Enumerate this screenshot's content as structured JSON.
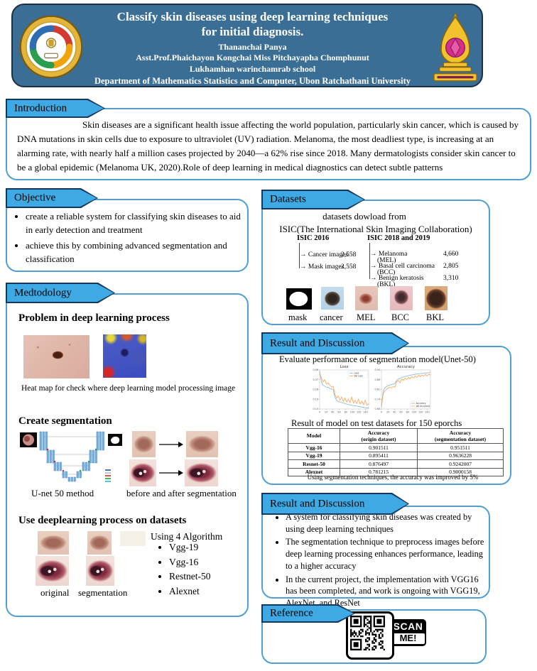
{
  "colors": {
    "header_bg": "#3a6e94",
    "banner_fill": "#3fa9e3",
    "banner_border": "#14375f",
    "panel_border": "#4f9fd4",
    "chart_train": "#7fb3d8",
    "chart_val": "#ffa04d"
  },
  "header": {
    "title_line1": "Classify skin diseases using deep learning techniques",
    "title_line2": "for initial diagnosis.",
    "author": "Thananchai Panya",
    "advisors": "Asst.Prof.Phaichayon Kongchai Miss Pitchayapha Chomphunut",
    "school": "Lukhamhan warinchamrab school",
    "department": "Department of Mathematics Statistics and Computer, Ubon Ratchathani University"
  },
  "introduction": {
    "title": "Introduction",
    "body": "Skin diseases are a significant health issue affecting the world population, particularly skin cancer, which is caused by DNA mutations in skin cells due to exposure to ultraviolet (UV) radiation. Melanoma, the most deadliest type, is increasing at an alarming rate, with nearly half a million cases projected by 2040—a 62% rise since 2018. Many dermatologists consider skin cancer to be a global epidemic (Melanoma UK, 2020).Role of deep learning in medical diagnostics can detect subtle patterns"
  },
  "objective": {
    "title": "Objective",
    "bullets": [
      "create a reliable system for classifying skin diseases to aid in early detection and treatment",
      "achieve this by combining advanced segmentation and classification"
    ]
  },
  "datasets": {
    "title": "Datasets",
    "subtitle_line1": "datasets dowload from",
    "subtitle_line2": "ISIC(The International Skin Imaging Collaboration)",
    "tree_arrow": "→",
    "isic2016": {
      "heading": "ISIC 2016",
      "items": [
        {
          "label": "Cancer images",
          "value": "2,558"
        },
        {
          "label": "Mask images",
          "value": "2,558"
        }
      ]
    },
    "isic2019": {
      "heading": "ISIC 2018 and 2019",
      "items": [
        {
          "label": "Melanoma",
          "abbr": "(MEL)",
          "value": "4,660"
        },
        {
          "label": "Basal cell carcinoma",
          "abbr": "(BCC)",
          "value": "2,805"
        },
        {
          "label": "Benign keratosis",
          "abbr": "(BKL)",
          "value": "3,310"
        }
      ]
    },
    "sample_labels": [
      "mask",
      "cancer",
      "MEL",
      "BCC",
      "BKL"
    ]
  },
  "methodology": {
    "title": "Medtodology",
    "problem_heading": "Problem in deep learning process",
    "heatmap_caption": "Heat map for check where deep learning model processing image",
    "segmentation_heading": "Create segmentation",
    "unet_caption": "U-net 50 method",
    "before_after_caption": "before and after segmentation",
    "deeplearning_heading": "Use deeplearning process on datasets",
    "original_label": "original",
    "segmentation_label": "segmentation",
    "algorithm_heading": "Using 4 Algorithm",
    "algorithms": [
      "Vgg-19",
      "Vgg-16",
      "Restnet-50",
      "Alexnet"
    ]
  },
  "results1": {
    "title": "Result and Discussion",
    "evaluate_heading": "Evaluate performance of segmentation model(Unet-50)",
    "table_heading": "Result of model on test datasets for 150 eporchs",
    "table": {
      "col_headers": [
        "Model",
        "Accuracy",
        "Accuracy"
      ],
      "col_subheaders": [
        "",
        "(origin dataset)",
        "(segmentation dataset)"
      ],
      "rows": [
        {
          "model": "Vgg-16",
          "origin": "0.901511",
          "seg": "0.951511"
        },
        {
          "model": "Vgg-19",
          "origin": "0.895411",
          "seg": "0.9636228"
        },
        {
          "model": "Resnet-50",
          "origin": "0.876497",
          "seg": "0.9242007"
        },
        {
          "model": "Alexnet",
          "origin": "0.781215",
          "seg": "0.9000158"
        }
      ]
    },
    "footnote": "Using segmentation techniques, the accuracy was improved by 5%"
  },
  "results2": {
    "title": "Result and Discussion",
    "bullets": [
      "A system for classifying skin diseases was created by using deep learning techniques",
      "The segmentation technique to preprocess images before deep learning processing enhances performance, leading to a higher accuracy",
      "In the current project, the implementation with VGG16 has been completed, and work is ongoing with VGG19, AlexNet, and ResNet"
    ]
  },
  "reference": {
    "title": "Reference",
    "scan_top": "SCAN",
    "scan_bottom": "ME!"
  },
  "chart_data": [
    {
      "type": "line",
      "title": "Loss",
      "xlabel": "epoch",
      "ylabel": "loss",
      "x_range": [
        0,
        150
      ],
      "ylim": [
        0.1,
        0.46
      ],
      "legend_position": "top-right",
      "grid": false,
      "series": [
        {
          "name": "Loss",
          "color": "#7fb3d8",
          "values": [
            0.45,
            0.35,
            0.32,
            0.31,
            0.3,
            0.3,
            0.29,
            0.285,
            0.28,
            0.21,
            0.18,
            0.17,
            0.165,
            0.16,
            0.155,
            0.15,
            0.145,
            0.14,
            0.138,
            0.135,
            0.132,
            0.13,
            0.127,
            0.124,
            0.121,
            0.118,
            0.115,
            0.112,
            0.11,
            0.108
          ]
        },
        {
          "name": "Val Loss",
          "color": "#ffa04d",
          "values": [
            0.43,
            0.39,
            0.35,
            0.37,
            0.33,
            0.34,
            0.32,
            0.3,
            0.31,
            0.24,
            0.2,
            0.22,
            0.18,
            0.21,
            0.17,
            0.2,
            0.165,
            0.19,
            0.16,
            0.21,
            0.155,
            0.18,
            0.15,
            0.19,
            0.145,
            0.17,
            0.14,
            0.18,
            0.135,
            0.15
          ]
        }
      ]
    },
    {
      "type": "line",
      "title": "Accuracy",
      "xlabel": "epoch",
      "ylabel": "accuracy",
      "x_range": [
        0,
        150
      ],
      "ylim": [
        0.68,
        0.94
      ],
      "legend_position": "bottom-right",
      "grid": false,
      "series": [
        {
          "name": "Accuracy",
          "color": "#7fb3d8",
          "values": [
            0.7,
            0.8,
            0.82,
            0.83,
            0.835,
            0.84,
            0.843,
            0.846,
            0.85,
            0.87,
            0.88,
            0.885,
            0.89,
            0.893,
            0.896,
            0.9,
            0.902,
            0.905,
            0.907,
            0.909,
            0.911,
            0.913,
            0.914,
            0.916,
            0.917,
            0.918,
            0.919,
            0.92,
            0.921,
            0.922
          ]
        },
        {
          "name": "Val Accuracy",
          "color": "#ffa04d",
          "values": [
            0.69,
            0.78,
            0.8,
            0.81,
            0.82,
            0.825,
            0.82,
            0.83,
            0.825,
            0.86,
            0.87,
            0.855,
            0.88,
            0.87,
            0.885,
            0.875,
            0.89,
            0.88,
            0.895,
            0.885,
            0.9,
            0.89,
            0.905,
            0.895,
            0.905,
            0.9,
            0.91,
            0.9,
            0.912,
            0.905
          ]
        }
      ]
    }
  ]
}
